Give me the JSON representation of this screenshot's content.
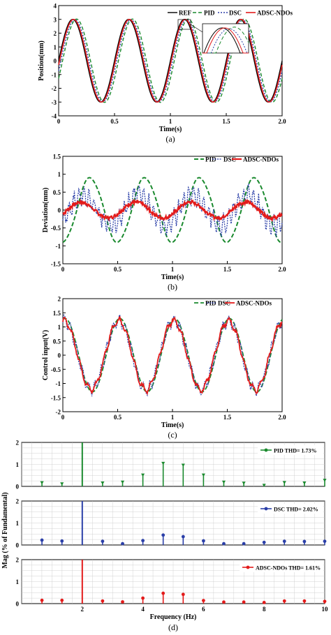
{
  "colors": {
    "ref": "#000000",
    "pid": "#1a8a2e",
    "dsc": "#2b3fa8",
    "adsc": "#e31b1b",
    "grid": "#c8c8c8"
  },
  "chart_data": [
    {
      "type": "line",
      "panel_label": "(a)",
      "xlabel": "Time(s)",
      "ylabel": "Position(mm)",
      "xlim": [
        0,
        2.0
      ],
      "ylim": [
        -4,
        4
      ],
      "xticks": [
        "0",
        "0.5",
        "1",
        "1.5",
        "2.0"
      ],
      "yticks": [
        "-4",
        "-3",
        "-2",
        "-1",
        "0",
        "1",
        "2",
        "3",
        "4"
      ],
      "grid": false,
      "legend_position": "top-right",
      "signal": {
        "amplitude": 3,
        "frequency_hz": 2
      },
      "series": [
        {
          "name": "REF",
          "phase_lag_s": 0.0,
          "amplitude": 3.0
        },
        {
          "name": "PID",
          "phase_lag_s": 0.035,
          "amplitude": 3.02
        },
        {
          "name": "DSC",
          "phase_lag_s": 0.02,
          "amplitude": 2.98
        },
        {
          "name": "ADSC-NDOs",
          "phase_lag_s": 0.008,
          "amplitude": 3.0
        }
      ],
      "inset": "zoomed view of peak near t = 1.1 s"
    },
    {
      "type": "line",
      "panel_label": "(b)",
      "xlabel": "Time(s)",
      "ylabel": "Deviation(mm)",
      "xlim": [
        0,
        2.0
      ],
      "ylim": [
        -1.5,
        1.5
      ],
      "xticks": [
        "0",
        "0.5",
        "1",
        "1.5",
        "2.0"
      ],
      "yticks": [
        "-1.5",
        "-1",
        "-0.5",
        "0",
        "0.5",
        "1",
        "1.5"
      ],
      "grid": false,
      "legend_position": "top-right",
      "series": [
        {
          "name": "PID",
          "amplitude": 0.9,
          "frequency_hz": 2
        },
        {
          "name": "DSC",
          "amplitude": 0.45,
          "frequency_hz": 2
        },
        {
          "name": "ADSC-NDOs",
          "amplitude": 0.22,
          "frequency_hz": 2
        }
      ]
    },
    {
      "type": "line",
      "panel_label": "(c)",
      "xlabel": "Time(s)",
      "ylabel": "Control input(V)",
      "xlim": [
        0,
        2.0
      ],
      "ylim": [
        -2,
        2
      ],
      "xticks": [
        "0",
        "0.5",
        "1",
        "1.5",
        "2.0"
      ],
      "yticks": [
        "-2",
        "-1.5",
        "-1",
        "-0.5",
        "0",
        "0.5",
        "1",
        "1.5",
        "2"
      ],
      "grid": false,
      "legend_position": "top-right",
      "series": [
        {
          "name": "PID",
          "amplitude": 1.3,
          "frequency_hz": 2
        },
        {
          "name": "DSC",
          "amplitude": 1.25,
          "frequency_hz": 2
        },
        {
          "name": "ADSC-NDOs",
          "amplitude": 1.25,
          "frequency_hz": 2
        }
      ]
    },
    {
      "type": "bar",
      "panel_label": "(d)",
      "xlabel": "Frequency (Hz)",
      "ylabel": "Mag (% of Fundamental)",
      "xlim": [
        0,
        10
      ],
      "ylim": [
        0,
        2
      ],
      "xticks": [
        "2",
        "4",
        "6",
        "8",
        "10"
      ],
      "yticks": [
        "0",
        "1",
        "2"
      ],
      "grid": true,
      "x": [
        0.67,
        1.33,
        2.0,
        2.67,
        3.33,
        4.0,
        4.67,
        5.33,
        6.0,
        6.67,
        7.33,
        8.0,
        8.67,
        9.33,
        10.0
      ],
      "series": [
        {
          "name": "PID",
          "legend": "PID  THD= 1.73%",
          "values": [
            0.17,
            0.12,
            2.0,
            0.16,
            0.2,
            0.52,
            1.05,
            0.97,
            0.52,
            0.2,
            0.15,
            0.05,
            0.18,
            0.16,
            0.28
          ]
        },
        {
          "name": "DSC",
          "legend": "DSC  THD= 2.02%",
          "values": [
            0.22,
            0.18,
            2.0,
            0.17,
            0.06,
            0.2,
            0.45,
            0.38,
            0.19,
            0.06,
            0.06,
            0.12,
            0.17,
            0.16,
            0.17
          ]
        },
        {
          "name": "ADSC-NDOs",
          "legend": "ADSC-NDOs  THD= 1.61%",
          "values": [
            0.15,
            0.15,
            2.0,
            0.12,
            0.08,
            0.25,
            0.47,
            0.42,
            0.14,
            0.07,
            0.07,
            0.05,
            0.12,
            0.12,
            0.1
          ]
        }
      ]
    }
  ]
}
